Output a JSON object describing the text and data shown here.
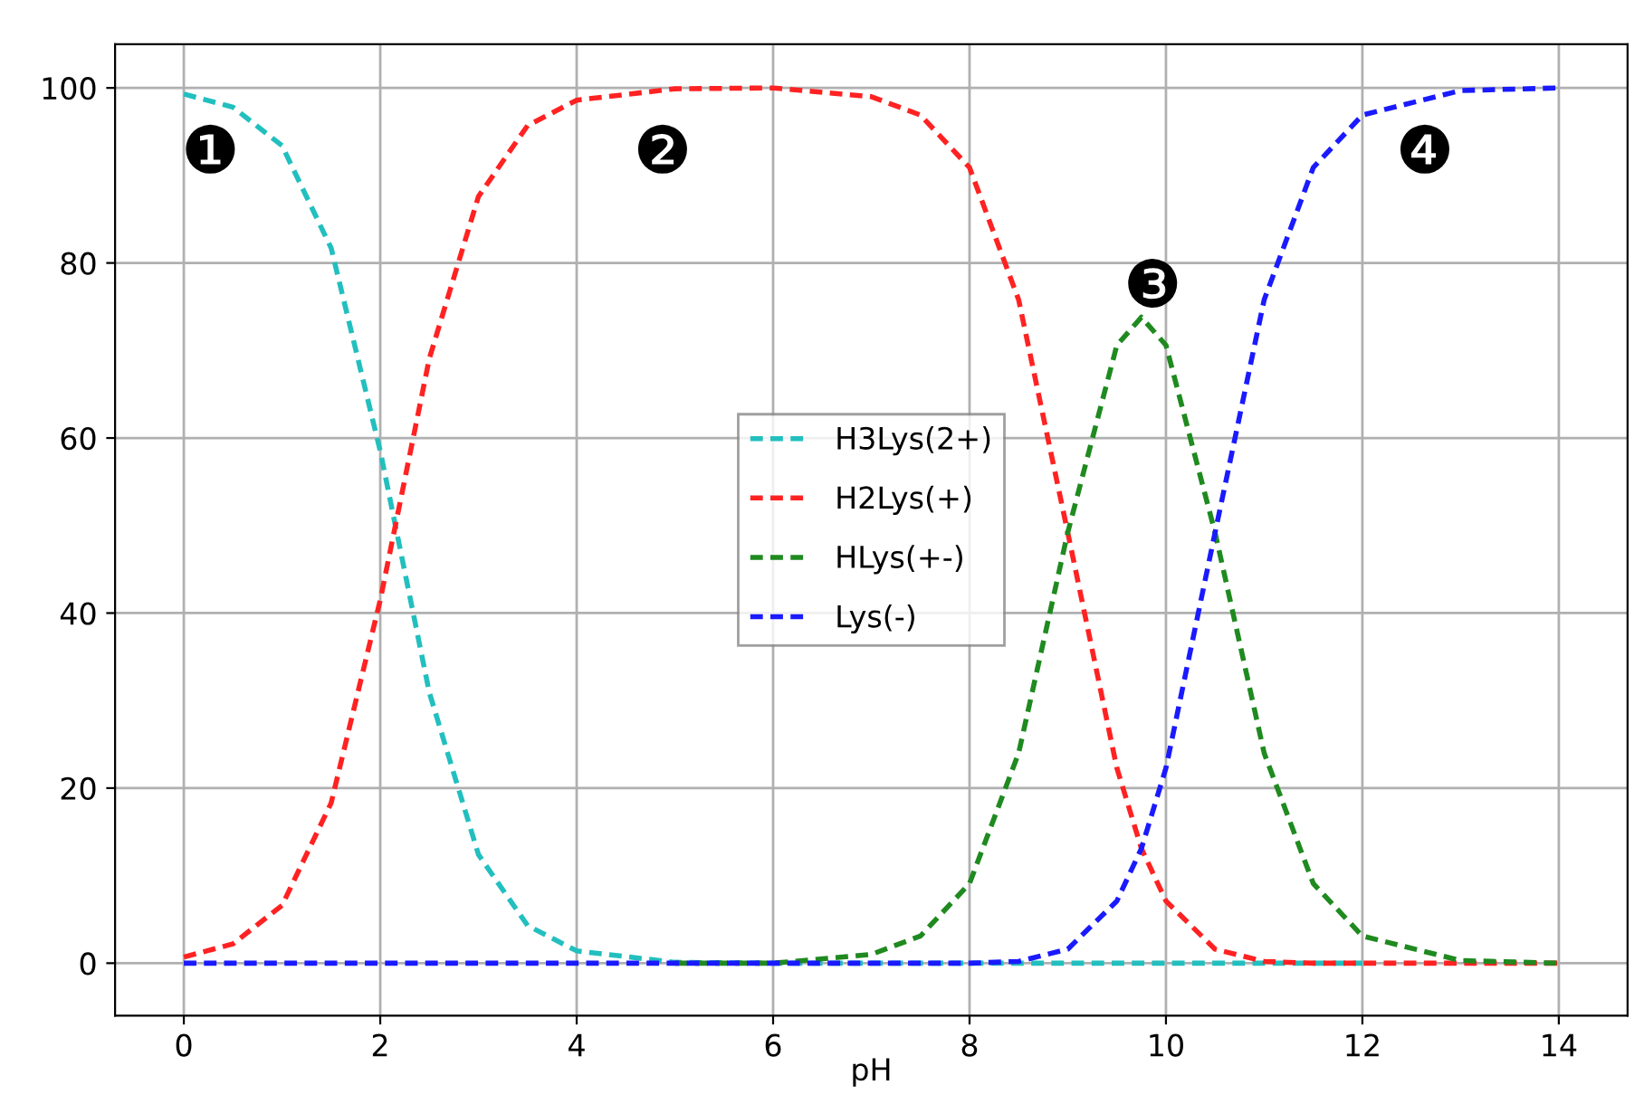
{
  "chart_data": {
    "type": "line",
    "xlabel": "pH",
    "x": [
      0,
      0.5,
      1,
      1.5,
      2,
      2.5,
      3,
      3.5,
      4,
      5,
      6,
      7,
      7.5,
      8,
      8.5,
      9,
      9.5,
      9.75,
      10,
      10.5,
      11,
      11.5,
      12,
      13,
      14
    ],
    "series": [
      {
        "name": "H3Lys(2+)",
        "color": "#22bfbf",
        "values": [
          99.3,
          97.8,
          93.4,
          81.7,
          58.5,
          30.9,
          12.4,
          4.3,
          1.4,
          0.1,
          0,
          0,
          0,
          0,
          0,
          0,
          0,
          0,
          0,
          0,
          0,
          0,
          0,
          null,
          null
        ]
      },
      {
        "name": "H2Lys(+)",
        "color": "#ff2222",
        "values": [
          0.7,
          2.2,
          6.6,
          18.3,
          41.5,
          69.1,
          87.6,
          95.7,
          98.6,
          99.9,
          100,
          99,
          96.9,
          90.9,
          75.8,
          49.2,
          22.3,
          13.1,
          7.1,
          1.6,
          0.2,
          0,
          0,
          0,
          0
        ]
      },
      {
        "name": "HLys(+-)",
        "color": "#1f8a1f",
        "values": [
          null,
          null,
          null,
          null,
          null,
          null,
          null,
          null,
          null,
          0,
          0,
          1,
          3.1,
          9.1,
          24.0,
          49.2,
          70.6,
          73.8,
          70.6,
          49.2,
          24.0,
          9.1,
          3.1,
          0.3,
          0
        ]
      },
      {
        "name": "Lys(-)",
        "color": "#1a1aff",
        "values": [
          0,
          0,
          0,
          0,
          0,
          0,
          0,
          0,
          0,
          0,
          0,
          0,
          0,
          0,
          0.2,
          1.6,
          7.1,
          13.1,
          22.3,
          49.2,
          75.8,
          90.9,
          96.9,
          99.7,
          100
        ]
      }
    ],
    "xlim": [
      -0.7,
      14.7
    ],
    "ylim": [
      -6,
      105
    ],
    "xticks": [
      0,
      2,
      4,
      6,
      8,
      10,
      12,
      14
    ],
    "yticks": [
      0,
      20,
      40,
      60,
      80,
      100
    ],
    "grid": true,
    "legend": "center",
    "line_style": "dashed",
    "marker": "none",
    "annotations": [
      "❶",
      "❷",
      "❸",
      "❹"
    ]
  }
}
